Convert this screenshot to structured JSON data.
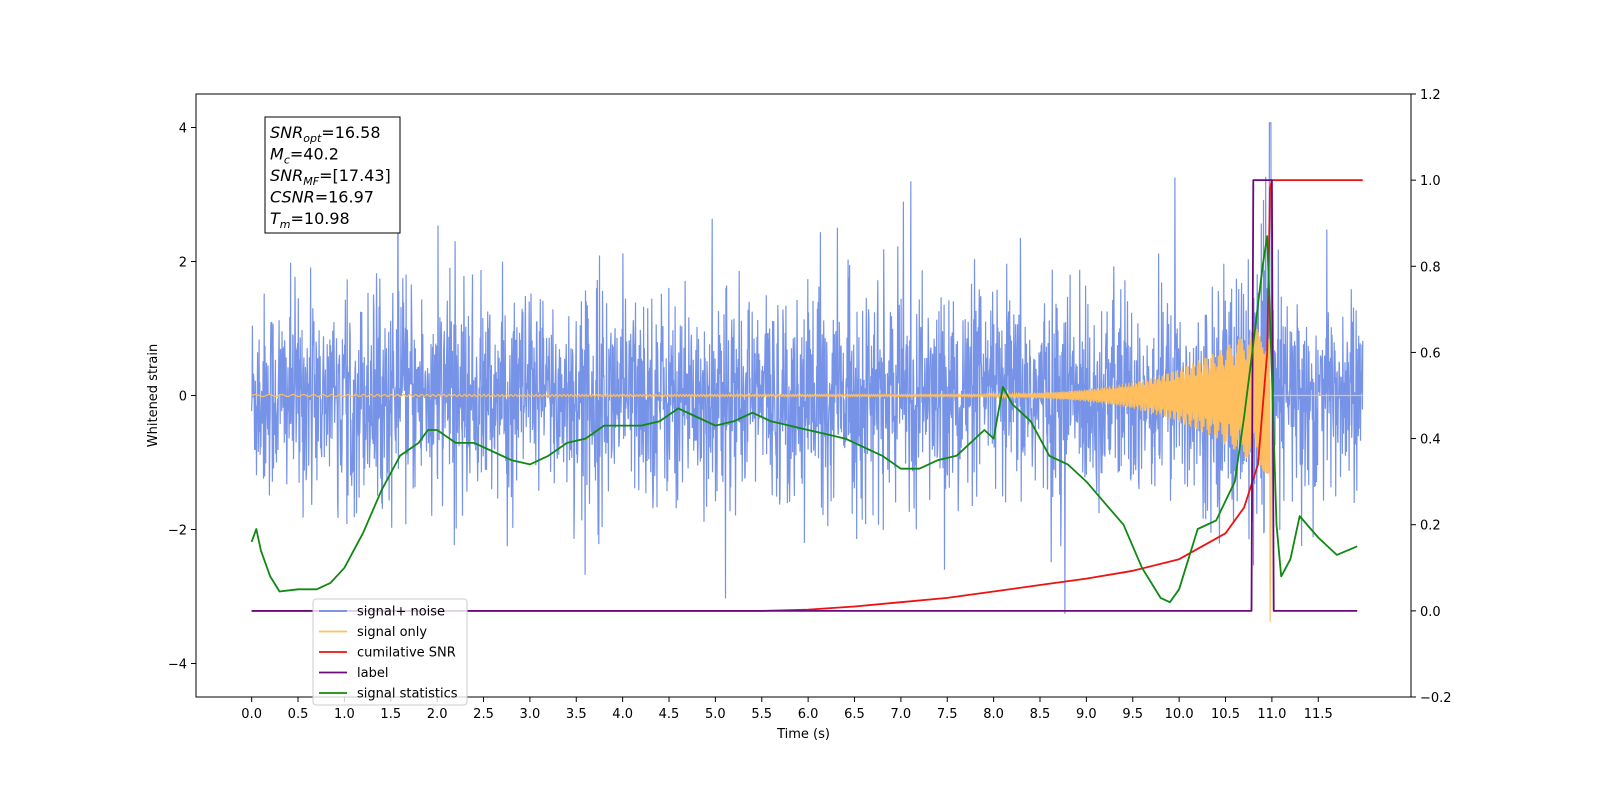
{
  "chart_data": {
    "type": "line",
    "xlabel": "Time (s)",
    "ylabel_left": "Whitened strain",
    "xlim": [
      -0.6,
      12.5
    ],
    "ylim_left": [
      -4.5,
      4.5
    ],
    "ylim_right": [
      -0.2,
      1.2
    ],
    "x_ticks": [
      "0.0",
      "0.5",
      "1.0",
      "1.5",
      "2.0",
      "2.5",
      "3.0",
      "3.5",
      "4.0",
      "4.5",
      "5.0",
      "5.5",
      "6.0",
      "6.5",
      "7.0",
      "7.5",
      "8.0",
      "8.5",
      "9.0",
      "9.5",
      "10.0",
      "10.5",
      "11.0",
      "11.5"
    ],
    "x_tick_values": [
      0,
      0.5,
      1,
      1.5,
      2,
      2.5,
      3,
      3.5,
      4,
      4.5,
      5,
      5.5,
      6,
      6.5,
      7,
      7.5,
      8,
      8.5,
      9,
      9.5,
      10,
      10.5,
      11,
      11.5
    ],
    "y_ticks_left": [
      "−4",
      "−2",
      "0",
      "2",
      "4"
    ],
    "y_tick_values_left": [
      -4,
      -2,
      0,
      2,
      4
    ],
    "y_ticks_right": [
      "−0.2",
      "0.0",
      "0.2",
      "0.4",
      "0.6",
      "0.8",
      "1.0",
      "1.2"
    ],
    "y_tick_values_right": [
      -0.2,
      0,
      0.2,
      0.4,
      0.6,
      0.8,
      1.0,
      1.2
    ],
    "legend_position": "lower-left",
    "annotation": [
      {
        "base": "SNR",
        "sub": "opt",
        "value": "=16.58"
      },
      {
        "base": "M",
        "sub": "c",
        "value": "=40.2"
      },
      {
        "base": "SNR",
        "sub": "MF",
        "value": "=[17.43]"
      },
      {
        "base": "CSNR",
        "sub": "",
        "value": "=16.97"
      },
      {
        "base": "T",
        "sub": "m",
        "value": "=10.98"
      }
    ],
    "series": [
      {
        "name": "signal+ noise",
        "color": "#6f8de6",
        "axis": "left",
        "x_range": [
          0,
          11.98
        ],
        "noise_std": 0.75,
        "spike_max": 4.07
      },
      {
        "name": "signal only",
        "color": "#ffbf5e",
        "axis": "left",
        "x_range": [
          0,
          11.98
        ],
        "peak_time": 10.98,
        "peak_amplitude": 1.2,
        "min_value": -3.6
      },
      {
        "name": "cumilative SNR",
        "color": "#ee1111",
        "axis": "right",
        "x": [
          0,
          5.5,
          6,
          6.5,
          7,
          7.5,
          8,
          8.5,
          9,
          9.5,
          10,
          10.5,
          10.7,
          10.85,
          10.95,
          10.98,
          11.0,
          11.98
        ],
        "values": [
          0,
          0,
          0.003,
          0.01,
          0.02,
          0.03,
          0.045,
          0.06,
          0.075,
          0.093,
          0.12,
          0.18,
          0.24,
          0.34,
          0.6,
          0.98,
          1.0,
          1.0
        ]
      },
      {
        "name": "label",
        "color": "#6a0a7a",
        "axis": "right",
        "x": [
          0,
          10.78,
          10.8,
          10.9,
          10.92,
          11.0,
          11.02,
          11.92
        ],
        "values": [
          0,
          0,
          1.0,
          1.0,
          1.0,
          1.0,
          0,
          0
        ]
      },
      {
        "name": "signal statistics",
        "color": "#118811",
        "axis": "right",
        "x": [
          0,
          0.05,
          0.1,
          0.2,
          0.3,
          0.5,
          0.7,
          0.85,
          1.0,
          1.2,
          1.4,
          1.6,
          1.8,
          1.9,
          2.0,
          2.2,
          2.4,
          2.6,
          2.8,
          3.0,
          3.2,
          3.4,
          3.6,
          3.8,
          4.0,
          4.2,
          4.4,
          4.6,
          4.8,
          5.0,
          5.2,
          5.4,
          5.6,
          5.8,
          6.0,
          6.2,
          6.4,
          6.6,
          6.8,
          7.0,
          7.2,
          7.4,
          7.6,
          7.8,
          7.9,
          8.0,
          8.1,
          8.2,
          8.4,
          8.6,
          8.8,
          9.0,
          9.2,
          9.4,
          9.6,
          9.8,
          9.9,
          10.0,
          10.2,
          10.4,
          10.6,
          10.7,
          10.8,
          10.9,
          10.95,
          11.0,
          11.05,
          11.1,
          11.2,
          11.3,
          11.5,
          11.7,
          11.92
        ],
        "values": [
          0.16,
          0.19,
          0.14,
          0.08,
          0.045,
          0.05,
          0.05,
          0.065,
          0.1,
          0.18,
          0.28,
          0.36,
          0.39,
          0.42,
          0.42,
          0.39,
          0.39,
          0.37,
          0.35,
          0.34,
          0.36,
          0.39,
          0.4,
          0.43,
          0.43,
          0.43,
          0.44,
          0.47,
          0.45,
          0.43,
          0.44,
          0.46,
          0.44,
          0.43,
          0.42,
          0.41,
          0.4,
          0.38,
          0.36,
          0.33,
          0.33,
          0.35,
          0.36,
          0.4,
          0.42,
          0.4,
          0.52,
          0.48,
          0.44,
          0.36,
          0.34,
          0.3,
          0.25,
          0.2,
          0.1,
          0.03,
          0.02,
          0.05,
          0.19,
          0.21,
          0.3,
          0.45,
          0.62,
          0.8,
          0.87,
          0.55,
          0.2,
          0.08,
          0.12,
          0.22,
          0.17,
          0.13,
          0.15
        ]
      }
    ]
  }
}
